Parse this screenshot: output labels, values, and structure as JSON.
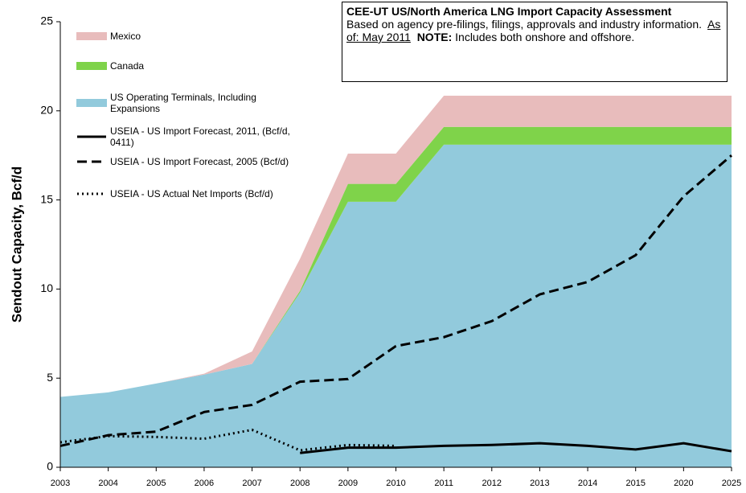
{
  "chart_data": {
    "type": "area",
    "ylabel": "Sendout Capacity, Bcf/d",
    "categories": [
      "2003",
      "2004",
      "2005",
      "2006",
      "2007",
      "2008",
      "2009",
      "2010",
      "2011",
      "2012",
      "2013",
      "2014",
      "2015",
      "2020",
      "2025"
    ],
    "ylim": [
      0,
      25
    ],
    "yticks": [
      0,
      5,
      10,
      15,
      20,
      25
    ],
    "annotation": {
      "title": "CEE-UT US/North America LNG Import Capacity Assessment",
      "text": "Based on agency pre-filings, filings, approvals and industry information.",
      "as_of": "As of: May 2011",
      "note_label": "NOTE:",
      "note": "Includes both onshore and offshore."
    },
    "series": [
      {
        "name": "Mexico",
        "kind": "area",
        "color": "#e8bcbc",
        "values": [
          0,
          0,
          0,
          0.05,
          0.7,
          1.8,
          1.7,
          1.7,
          1.75,
          1.75,
          1.75,
          1.75,
          1.75,
          1.75,
          1.75
        ]
      },
      {
        "name": "Canada",
        "kind": "area",
        "color": "#7fd34a",
        "values": [
          0,
          0,
          0,
          0,
          0,
          0.1,
          1.0,
          1.0,
          1.0,
          1.0,
          1.0,
          1.0,
          1.0,
          1.0,
          1.0
        ]
      },
      {
        "name": "US Operating Terminals, Including Expansions",
        "kind": "area",
        "color": "#92cadc",
        "values": [
          3.95,
          4.2,
          4.7,
          5.2,
          5.8,
          9.8,
          14.9,
          14.9,
          18.1,
          18.1,
          18.1,
          18.1,
          18.1,
          18.1,
          18.1
        ]
      },
      {
        "name": "USEIA - US Import Forecast, 2011, (Bcf/d, 0411)",
        "kind": "line",
        "style": "solid",
        "color": "#000000",
        "values": [
          null,
          null,
          null,
          null,
          null,
          0.8,
          1.1,
          1.1,
          1.2,
          1.25,
          1.35,
          1.2,
          1.0,
          1.35,
          0.9
        ]
      },
      {
        "name": "USEIA - US Import Forecast, 2005 (Bcf/d)",
        "kind": "line",
        "style": "dashed",
        "color": "#000000",
        "values": [
          1.2,
          1.8,
          2.0,
          3.1,
          3.5,
          4.8,
          4.95,
          6.8,
          7.3,
          8.2,
          9.7,
          10.4,
          11.9,
          15.2,
          17.5
        ]
      },
      {
        "name": "USEIA - US Actual Net Imports (Bcf/d)",
        "kind": "line",
        "style": "dotted",
        "color": "#000000",
        "values": [
          1.4,
          1.75,
          1.7,
          1.6,
          2.1,
          0.95,
          1.25,
          1.2,
          null,
          null,
          null,
          null,
          null,
          null,
          null
        ]
      }
    ]
  }
}
